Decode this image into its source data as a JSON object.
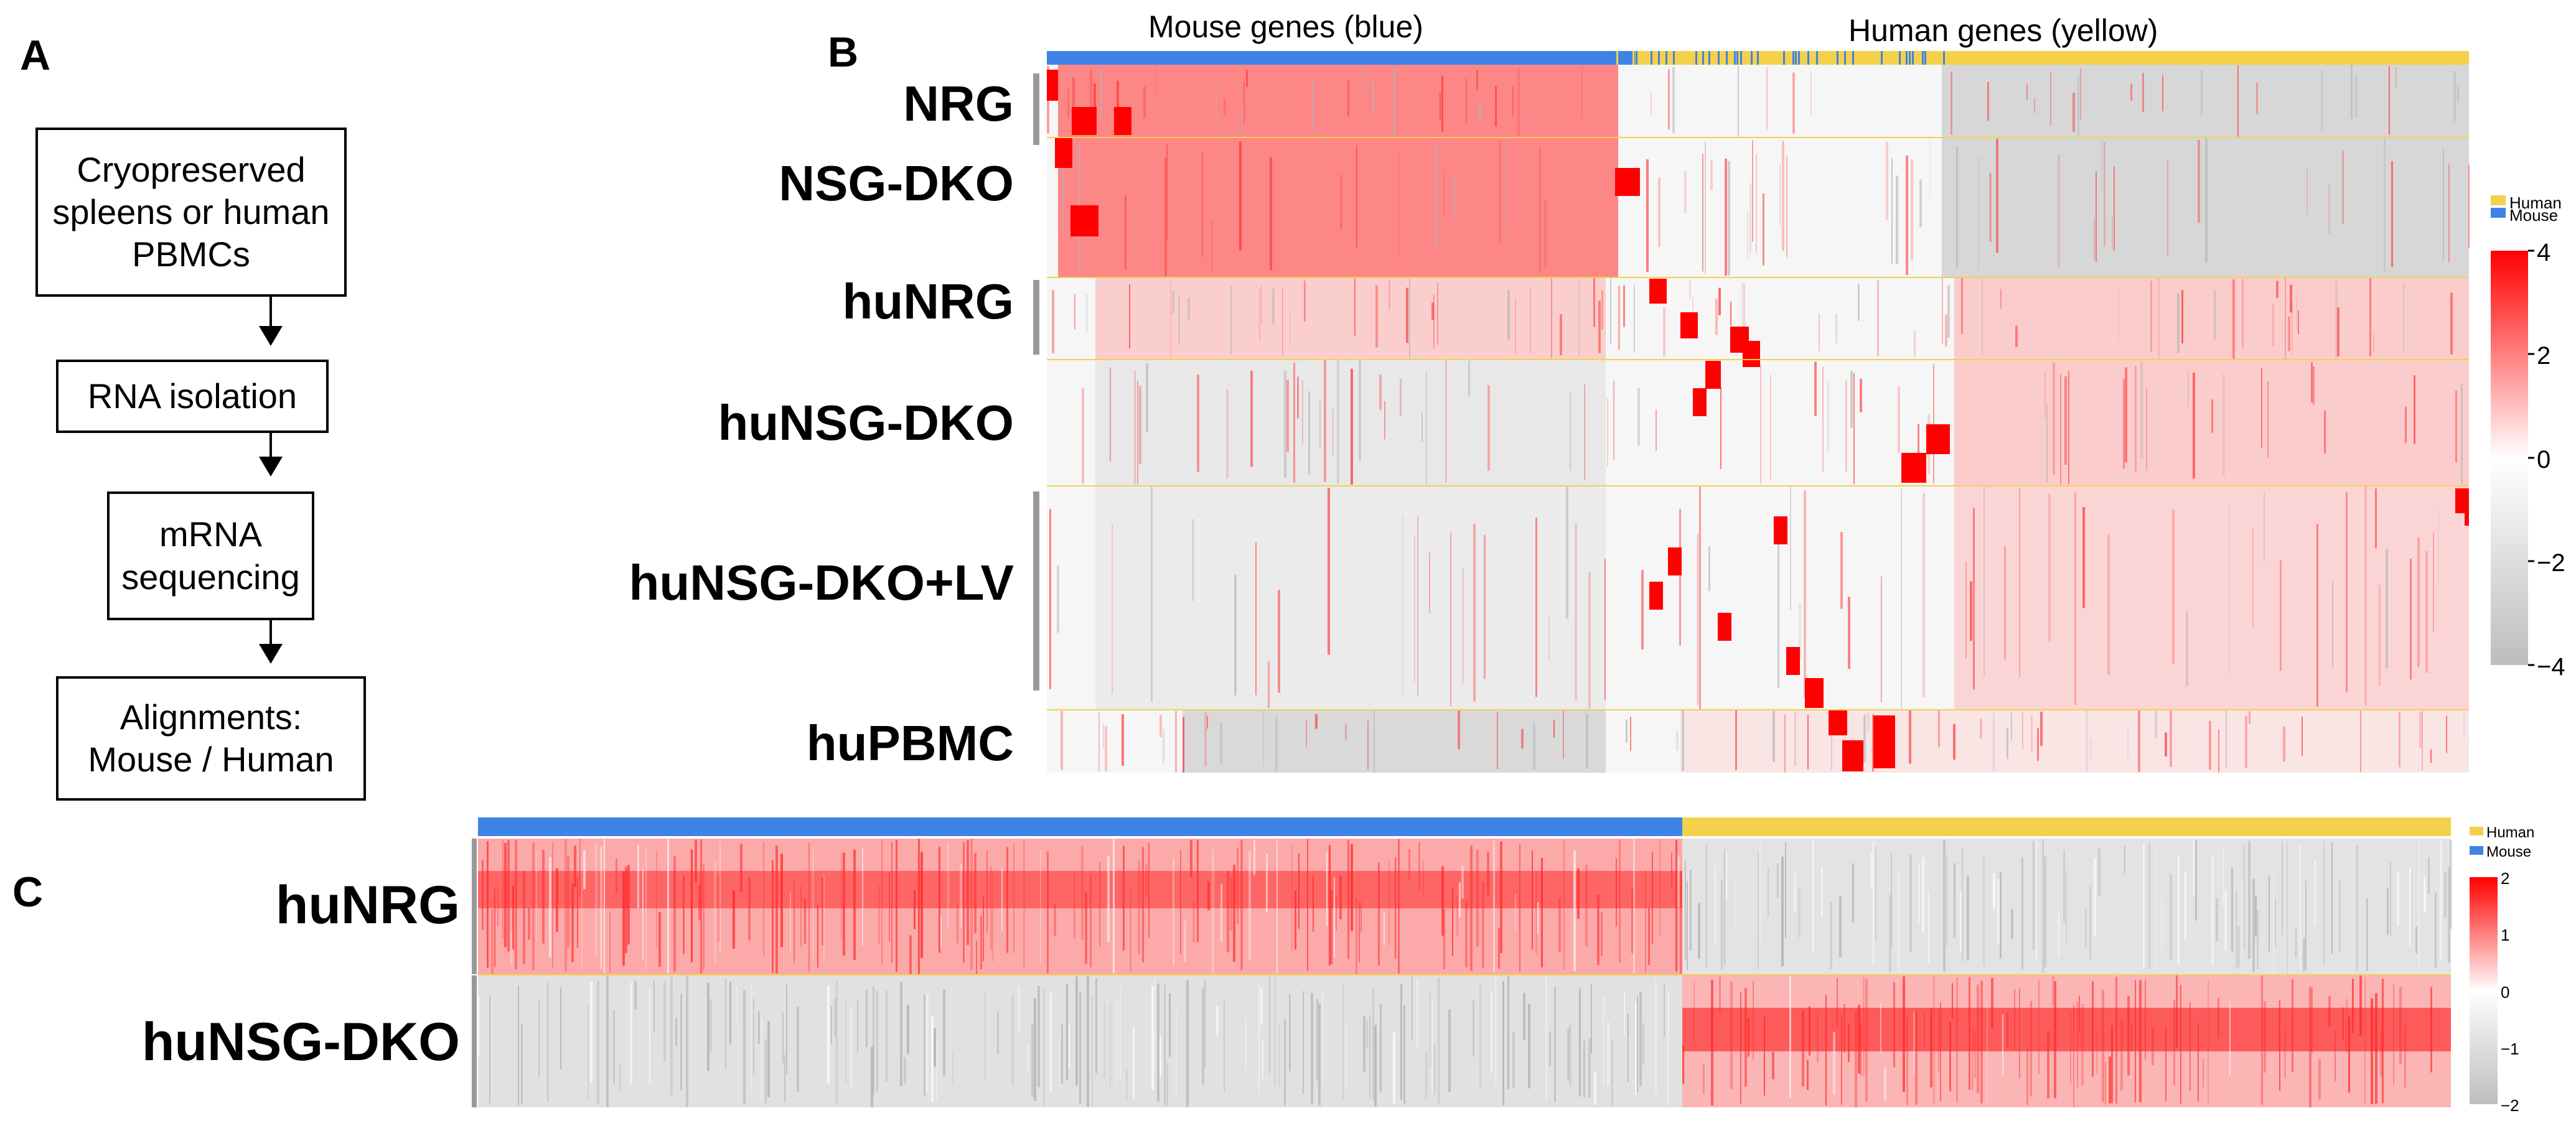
{
  "panels": {
    "a": "A",
    "b": "B",
    "c": "C"
  },
  "flowchart": {
    "steps": [
      {
        "text": "Cryopreserved spleens or human PBMCs"
      },
      {
        "text": "RNA isolation"
      },
      {
        "text": "mRNA sequencing"
      },
      {
        "text": "Alignments: Mouse / Human"
      }
    ]
  },
  "panel_b": {
    "col_titles": {
      "mouse": "Mouse genes (blue)",
      "human": "Human genes (yellow)"
    },
    "rows": [
      {
        "label": "NRG"
      },
      {
        "label": "NSG-DKO"
      },
      {
        "label": "huNRG"
      },
      {
        "label": "huNSG-DKO"
      },
      {
        "label": "huNSG-DKO+LV"
      },
      {
        "label": "huPBMC"
      }
    ],
    "legend": {
      "human": "Human",
      "mouse": "Mouse"
    },
    "scale_ticks": [
      "4",
      "2",
      "0",
      "−2",
      "−4"
    ]
  },
  "panel_c": {
    "rows": [
      {
        "label": "huNRG"
      },
      {
        "label": "huNSG-DKO"
      }
    ],
    "legend": {
      "human": "Human",
      "mouse": "Mouse"
    },
    "scale_ticks": [
      "2",
      "1",
      "0",
      "−1",
      "−2"
    ]
  },
  "colors": {
    "mouse": "#3f83e6",
    "human": "#f3d14b",
    "high": "#ff0000",
    "mid": "#ffffff",
    "low": "#bdbdbd",
    "separator": "#f3d14b"
  }
}
